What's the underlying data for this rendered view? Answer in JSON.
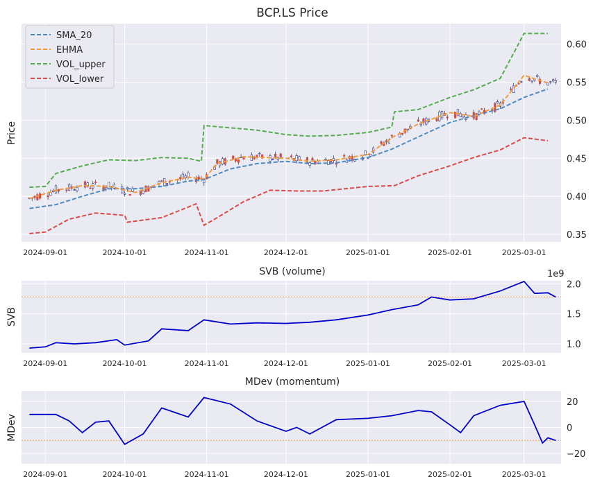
{
  "chart_data": [
    {
      "type": "candlestick",
      "title": "BCP.LS Price",
      "ylabel": "Price",
      "xlabel": "",
      "x_ticks": [
        "2024-09-01",
        "2024-10-01",
        "2024-11-01",
        "2024-12-01",
        "2025-01-01",
        "2025-02-01",
        "2025-03-01"
      ],
      "y_ticks": [
        "0.35",
        "0.40",
        "0.45",
        "0.50",
        "0.55",
        "0.60"
      ],
      "ylim": [
        0.34,
        0.627
      ],
      "x_range": [
        "2024-08-23",
        "2025-03-15"
      ],
      "grid": true,
      "legend_position": "top-left",
      "series": [
        {
          "name": "SMA_20",
          "color": "#4c8ac6",
          "style": "dashed",
          "points": [
            [
              "2024-08-26",
              0.384
            ],
            [
              "2024-09-05",
              0.389
            ],
            [
              "2024-09-15",
              0.4
            ],
            [
              "2024-09-25",
              0.41
            ],
            [
              "2024-10-05",
              0.41
            ],
            [
              "2024-10-15",
              0.413
            ],
            [
              "2024-10-25",
              0.42
            ],
            [
              "2024-10-31",
              0.422
            ],
            [
              "2024-11-10",
              0.436
            ],
            [
              "2024-11-20",
              0.443
            ],
            [
              "2024-12-01",
              0.446
            ],
            [
              "2024-12-10",
              0.443
            ],
            [
              "2024-12-20",
              0.444
            ],
            [
              "2025-01-01",
              0.451
            ],
            [
              "2025-01-10",
              0.462
            ],
            [
              "2025-01-20",
              0.478
            ],
            [
              "2025-02-01",
              0.497
            ],
            [
              "2025-02-10",
              0.506
            ],
            [
              "2025-02-20",
              0.515
            ],
            [
              "2025-03-01",
              0.53
            ],
            [
              "2025-03-10",
              0.541
            ]
          ]
        },
        {
          "name": "EHMA",
          "color": "#f39a3d",
          "style": "dashed",
          "points": [
            [
              "2024-08-26",
              0.397
            ],
            [
              "2024-09-05",
              0.408
            ],
            [
              "2024-09-15",
              0.414
            ],
            [
              "2024-09-25",
              0.413
            ],
            [
              "2024-10-05",
              0.405
            ],
            [
              "2024-10-15",
              0.418
            ],
            [
              "2024-10-25",
              0.425
            ],
            [
              "2024-10-31",
              0.423
            ],
            [
              "2024-11-05",
              0.443
            ],
            [
              "2024-11-15",
              0.452
            ],
            [
              "2024-12-01",
              0.45
            ],
            [
              "2024-12-10",
              0.446
            ],
            [
              "2024-12-20",
              0.448
            ],
            [
              "2025-01-01",
              0.455
            ],
            [
              "2025-01-10",
              0.477
            ],
            [
              "2025-01-20",
              0.495
            ],
            [
              "2025-02-01",
              0.51
            ],
            [
              "2025-02-10",
              0.505
            ],
            [
              "2025-02-20",
              0.52
            ],
            [
              "2025-03-01",
              0.559
            ],
            [
              "2025-03-10",
              0.549
            ]
          ]
        },
        {
          "name": "VOL_upper",
          "color": "#55ac4f",
          "style": "dashed",
          "points": [
            [
              "2024-08-26",
              0.412
            ],
            [
              "2024-09-01",
              0.413
            ],
            [
              "2024-09-05",
              0.43
            ],
            [
              "2024-09-15",
              0.44
            ],
            [
              "2024-09-25",
              0.448
            ],
            [
              "2024-10-05",
              0.447
            ],
            [
              "2024-10-15",
              0.451
            ],
            [
              "2024-10-25",
              0.45
            ],
            [
              "2024-10-30",
              0.446
            ],
            [
              "2024-10-31",
              0.493
            ],
            [
              "2024-11-10",
              0.49
            ],
            [
              "2024-11-20",
              0.487
            ],
            [
              "2024-12-01",
              0.481
            ],
            [
              "2024-12-10",
              0.479
            ],
            [
              "2024-12-20",
              0.48
            ],
            [
              "2025-01-01",
              0.484
            ],
            [
              "2025-01-10",
              0.491
            ],
            [
              "2025-01-11",
              0.511
            ],
            [
              "2025-01-20",
              0.514
            ],
            [
              "2025-02-01",
              0.53
            ],
            [
              "2025-02-10",
              0.54
            ],
            [
              "2025-02-20",
              0.555
            ],
            [
              "2025-03-01",
              0.614
            ],
            [
              "2025-03-10",
              0.614
            ]
          ]
        },
        {
          "name": "VOL_lower",
          "color": "#dc4a47",
          "style": "dashed",
          "points": [
            [
              "2024-08-26",
              0.351
            ],
            [
              "2024-09-01",
              0.353
            ],
            [
              "2024-09-10",
              0.37
            ],
            [
              "2024-09-20",
              0.378
            ],
            [
              "2024-10-01",
              0.375
            ],
            [
              "2024-10-02",
              0.366
            ],
            [
              "2024-10-15",
              0.372
            ],
            [
              "2024-10-28",
              0.39
            ],
            [
              "2024-10-31",
              0.362
            ],
            [
              "2024-11-05",
              0.372
            ],
            [
              "2024-11-15",
              0.393
            ],
            [
              "2024-11-25",
              0.408
            ],
            [
              "2024-12-05",
              0.407
            ],
            [
              "2024-12-15",
              0.407
            ],
            [
              "2025-01-01",
              0.413
            ],
            [
              "2025-01-11",
              0.414
            ],
            [
              "2025-01-20",
              0.427
            ],
            [
              "2025-02-01",
              0.44
            ],
            [
              "2025-02-10",
              0.451
            ],
            [
              "2025-02-20",
              0.461
            ],
            [
              "2025-03-01",
              0.477
            ],
            [
              "2025-03-10",
              0.473
            ]
          ]
        }
      ],
      "candles_summary": {
        "start_close": 0.401,
        "end_close": 0.527,
        "peak_high": 0.59,
        "colors": {
          "up": "#2a2a8a",
          "down": "#c9504c"
        }
      }
    },
    {
      "type": "line",
      "title": "SVB (volume)",
      "ylabel": "SVB",
      "xlabel": "",
      "offset_label": "1e9",
      "x_ticks": [
        "2024-09-01",
        "2024-10-01",
        "2024-11-01",
        "2024-12-01",
        "2025-01-01",
        "2025-02-01",
        "2025-03-01"
      ],
      "y_ticks": [
        "1.0",
        "1.5",
        "2.0"
      ],
      "ylim": [
        0.85,
        2.05
      ],
      "threshold": 1.78,
      "grid": true,
      "series": [
        {
          "color": "#0000cc",
          "points": [
            [
              "2024-08-26",
              0.93
            ],
            [
              "2024-09-01",
              0.95
            ],
            [
              "2024-09-05",
              1.02
            ],
            [
              "2024-09-12",
              1.0
            ],
            [
              "2024-09-20",
              1.02
            ],
            [
              "2024-09-28",
              1.07
            ],
            [
              "2024-10-01",
              0.98
            ],
            [
              "2024-10-10",
              1.05
            ],
            [
              "2024-10-15",
              1.25
            ],
            [
              "2024-10-25",
              1.22
            ],
            [
              "2024-10-31",
              1.4
            ],
            [
              "2024-11-10",
              1.33
            ],
            [
              "2024-11-20",
              1.35
            ],
            [
              "2024-12-01",
              1.34
            ],
            [
              "2024-12-10",
              1.36
            ],
            [
              "2024-12-20",
              1.4
            ],
            [
              "2025-01-01",
              1.48
            ],
            [
              "2025-01-10",
              1.57
            ],
            [
              "2025-01-20",
              1.65
            ],
            [
              "2025-01-25",
              1.78
            ],
            [
              "2025-02-01",
              1.73
            ],
            [
              "2025-02-10",
              1.75
            ],
            [
              "2025-02-20",
              1.88
            ],
            [
              "2025-03-01",
              2.04
            ],
            [
              "2025-03-05",
              1.84
            ],
            [
              "2025-03-10",
              1.85
            ],
            [
              "2025-03-13",
              1.78
            ]
          ]
        }
      ]
    },
    {
      "type": "line",
      "title": "MDev (momentum)",
      "ylabel": "MDev",
      "xlabel": "",
      "x_ticks": [
        "2024-09-01",
        "2024-10-01",
        "2024-11-01",
        "2024-12-01",
        "2025-01-01",
        "2025-02-01",
        "2025-03-01"
      ],
      "y_ticks": [
        "20",
        "0",
        "−20"
      ],
      "ylim": [
        -28,
        28
      ],
      "threshold": -10,
      "grid": true,
      "series": [
        {
          "color": "#0000cc",
          "points": [
            [
              "2024-08-26",
              10
            ],
            [
              "2024-09-05",
              10
            ],
            [
              "2024-09-10",
              5
            ],
            [
              "2024-09-15",
              -4
            ],
            [
              "2024-09-20",
              4
            ],
            [
              "2024-09-25",
              5
            ],
            [
              "2024-10-01",
              -13
            ],
            [
              "2024-10-08",
              -5
            ],
            [
              "2024-10-15",
              15
            ],
            [
              "2024-10-25",
              8
            ],
            [
              "2024-10-31",
              23
            ],
            [
              "2024-11-10",
              18
            ],
            [
              "2024-11-20",
              5
            ],
            [
              "2024-12-01",
              -3
            ],
            [
              "2024-12-05",
              0
            ],
            [
              "2024-12-10",
              -5
            ],
            [
              "2024-12-20",
              6
            ],
            [
              "2025-01-01",
              7
            ],
            [
              "2025-01-10",
              9
            ],
            [
              "2025-01-20",
              13
            ],
            [
              "2025-01-25",
              12
            ],
            [
              "2025-02-01",
              2
            ],
            [
              "2025-02-05",
              -4
            ],
            [
              "2025-02-10",
              9
            ],
            [
              "2025-02-20",
              17
            ],
            [
              "2025-03-01",
              20
            ],
            [
              "2025-03-05",
              2
            ],
            [
              "2025-03-08",
              -12
            ],
            [
              "2025-03-10",
              -8
            ],
            [
              "2025-03-13",
              -10
            ]
          ]
        }
      ]
    }
  ]
}
